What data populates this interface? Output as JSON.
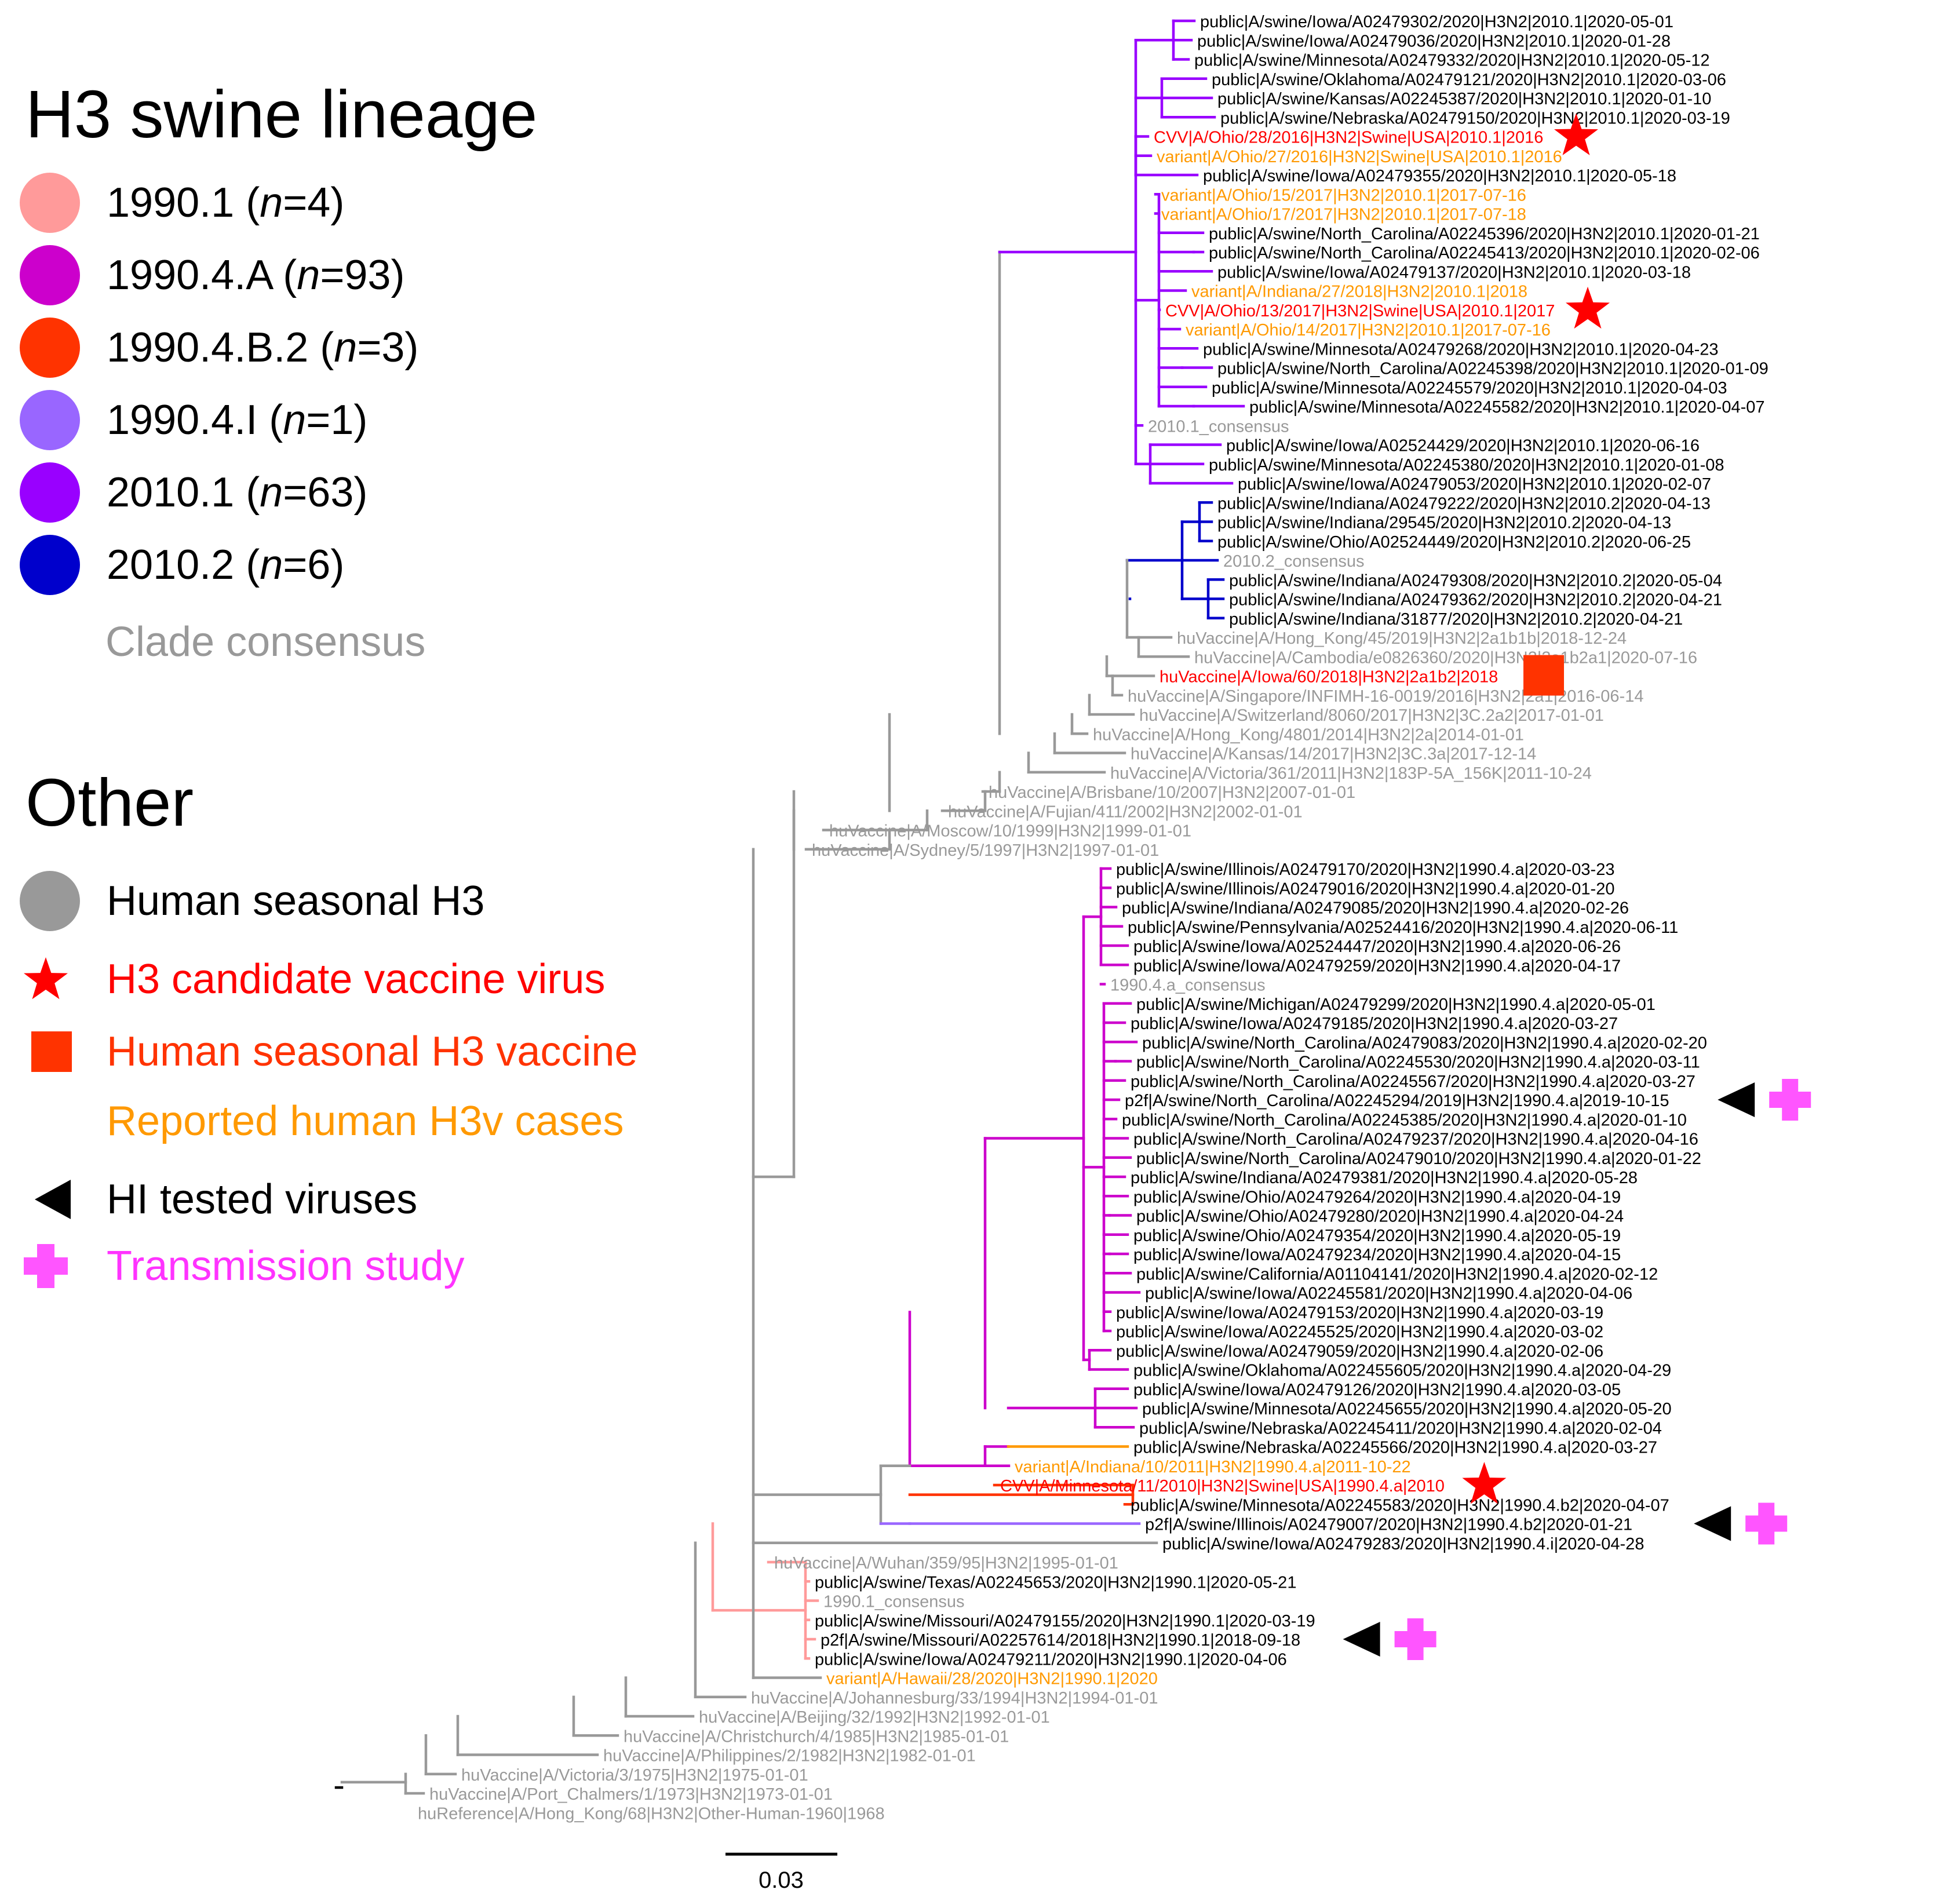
{
  "legend": {
    "lineage_title": "H3 swine lineage",
    "lineages": [
      {
        "name": "1990.1",
        "n": "4",
        "color": "#ff9a9a"
      },
      {
        "name": "1990.4.A",
        "n": "93",
        "color": "#cc00cc"
      },
      {
        "name": "1990.4.B.2",
        "n": "3",
        "color": "#ff3300"
      },
      {
        "name": "1990.4.I",
        "n": "1",
        "color": "#9966ff"
      },
      {
        "name": "2010.1",
        "n": "63",
        "color": "#9900ff"
      },
      {
        "name": "2010.2",
        "n": "6",
        "color": "#0000cc"
      }
    ],
    "consensus_label": "Clade consensus",
    "other_title": "Other",
    "other": [
      {
        "symbol": "circle",
        "label": "Human seasonal H3",
        "color": "#999999",
        "text_color": "#000000"
      },
      {
        "symbol": "star",
        "label": "H3 candidate vaccine virus",
        "color": "#ff0000",
        "text_color": "#ff0000"
      },
      {
        "symbol": "square",
        "label": "Human seasonal H3 vaccine",
        "color": "#ff3300",
        "text_color": "#ff3300"
      },
      {
        "symbol": "none",
        "label": "Reported human H3v cases",
        "color": "#ff9900",
        "text_color": "#ff9900"
      },
      {
        "symbol": "triangle",
        "label": "HI tested viruses",
        "color": "#000000",
        "text_color": "#000000"
      },
      {
        "symbol": "cross",
        "label": "Transmission study",
        "color": "#ff55ff",
        "text_color": "#ff33ff"
      }
    ]
  },
  "colors": {
    "2010.1": "#9900ff",
    "2010.2": "#0000cc",
    "1990.4.A": "#cc00cc",
    "1990.4.B.2": "#ff3300",
    "1990.4.I": "#9966ff",
    "1990.1": "#ff9a9a",
    "human": "#999999",
    "cvv": "#ff0000",
    "variant": "#ff9900",
    "swine_text": "#000000",
    "consensus_text": "#999999"
  },
  "scale_bar": {
    "value": 0.03,
    "label": "0.03"
  },
  "taxa": [
    {
      "label": "public|A/swine/Iowa/A02479302/2020|H3N2|2010.1|2020-05-01",
      "type": "swine",
      "clade": "2010.1"
    },
    {
      "label": "public|A/swine/Iowa/A02479036/2020|H3N2|2010.1|2020-01-28",
      "type": "swine",
      "clade": "2010.1"
    },
    {
      "label": "public|A/swine/Minnesota/A02479332/2020|H3N2|2010.1|2020-05-12",
      "type": "swine",
      "clade": "2010.1"
    },
    {
      "label": "public|A/swine/Oklahoma/A02479121/2020|H3N2|2010.1|2020-03-06",
      "type": "swine",
      "clade": "2010.1"
    },
    {
      "label": "public|A/swine/Kansas/A02245387/2020|H3N2|2010.1|2020-01-10",
      "type": "swine",
      "clade": "2010.1"
    },
    {
      "label": "public|A/swine/Nebraska/A02479150/2020|H3N2|2010.1|2020-03-19",
      "type": "swine",
      "clade": "2010.1"
    },
    {
      "label": "CVV|A/Ohio/28/2016|H3N2|Swine|USA|2010.1|2016",
      "type": "cvv",
      "clade": "2010.1",
      "star": true
    },
    {
      "label": "variant|A/Ohio/27/2016|H3N2|Swine|USA|2010.1|2016",
      "type": "variant",
      "clade": "2010.1"
    },
    {
      "label": "public|A/swine/Iowa/A02479355/2020|H3N2|2010.1|2020-05-18",
      "type": "swine",
      "clade": "2010.1"
    },
    {
      "label": "variant|A/Ohio/15/2017|H3N2|2010.1|2017-07-16",
      "type": "variant",
      "clade": "2010.1"
    },
    {
      "label": "variant|A/Ohio/17/2017|H3N2|2010.1|2017-07-18",
      "type": "variant",
      "clade": "2010.1"
    },
    {
      "label": "public|A/swine/North_Carolina/A02245396/2020|H3N2|2010.1|2020-01-21",
      "type": "swine",
      "clade": "2010.1"
    },
    {
      "label": "public|A/swine/North_Carolina/A02245413/2020|H3N2|2010.1|2020-02-06",
      "type": "swine",
      "clade": "2010.1"
    },
    {
      "label": "public|A/swine/Iowa/A02479137/2020|H3N2|2010.1|2020-03-18",
      "type": "swine",
      "clade": "2010.1"
    },
    {
      "label": "variant|A/Indiana/27/2018|H3N2|2010.1|2018",
      "type": "variant",
      "clade": "2010.1"
    },
    {
      "label": "CVV|A/Ohio/13/2017|H3N2|Swine|USA|2010.1|2017",
      "type": "cvv",
      "clade": "2010.1",
      "star": true
    },
    {
      "label": "variant|A/Ohio/14/2017|H3N2|2010.1|2017-07-16",
      "type": "variant",
      "clade": "2010.1"
    },
    {
      "label": "public|A/swine/Minnesota/A02479268/2020|H3N2|2010.1|2020-04-23",
      "type": "swine",
      "clade": "2010.1"
    },
    {
      "label": "public|A/swine/North_Carolina/A02245398/2020|H3N2|2010.1|2020-01-09",
      "type": "swine",
      "clade": "2010.1"
    },
    {
      "label": "public|A/swine/Minnesota/A02245579/2020|H3N2|2010.1|2020-04-03",
      "type": "swine",
      "clade": "2010.1"
    },
    {
      "label": "public|A/swine/Minnesota/A02245582/2020|H3N2|2010.1|2020-04-07",
      "type": "swine",
      "clade": "2010.1"
    },
    {
      "label": "2010.1_consensus",
      "type": "consensus",
      "clade": "2010.1"
    },
    {
      "label": "public|A/swine/Iowa/A02524429/2020|H3N2|2010.1|2020-06-16",
      "type": "swine",
      "clade": "2010.1"
    },
    {
      "label": "public|A/swine/Minnesota/A02245380/2020|H3N2|2010.1|2020-01-08",
      "type": "swine",
      "clade": "2010.1"
    },
    {
      "label": "public|A/swine/Iowa/A02479053/2020|H3N2|2010.1|2020-02-07",
      "type": "swine",
      "clade": "2010.1"
    },
    {
      "label": "public|A/swine/Indiana/A02479222/2020|H3N2|2010.2|2020-04-13",
      "type": "swine",
      "clade": "2010.2"
    },
    {
      "label": "public|A/swine/Indiana/29545/2020|H3N2|2010.2|2020-04-13",
      "type": "swine",
      "clade": "2010.2"
    },
    {
      "label": "public|A/swine/Ohio/A02524449/2020|H3N2|2010.2|2020-06-25",
      "type": "swine",
      "clade": "2010.2"
    },
    {
      "label": "2010.2_consensus",
      "type": "consensus",
      "clade": "2010.2"
    },
    {
      "label": "public|A/swine/Indiana/A02479308/2020|H3N2|2010.2|2020-05-04",
      "type": "swine",
      "clade": "2010.2"
    },
    {
      "label": "public|A/swine/Indiana/A02479362/2020|H3N2|2010.2|2020-04-21",
      "type": "swine",
      "clade": "2010.2"
    },
    {
      "label": "public|A/swine/Indiana/31877/2020|H3N2|2010.2|2020-04-21",
      "type": "swine",
      "clade": "2010.2"
    },
    {
      "label": "huVaccine|A/Hong_Kong/45/2019|H3N2|2a1b1b|2018-12-24",
      "type": "human",
      "clade": "human"
    },
    {
      "label": "huVaccine|A/Cambodia/e0826360/2020|H3N2|2a1b2a1|2020-07-16",
      "type": "human",
      "clade": "human"
    },
    {
      "label": "huVaccine|A/Iowa/60/2018|H3N2|2a1b2|2018",
      "type": "cvv",
      "clade": "human",
      "square": true
    },
    {
      "label": "huVaccine|A/Singapore/INFIMH-16-0019/2016|H3N2|2a1|2016-06-14",
      "type": "human",
      "clade": "human"
    },
    {
      "label": "huVaccine|A/Switzerland/8060/2017|H3N2|3C.2a2|2017-01-01",
      "type": "human",
      "clade": "human"
    },
    {
      "label": "huVaccine|A/Hong_Kong/4801/2014|H3N2|2a|2014-01-01",
      "type": "human",
      "clade": "human"
    },
    {
      "label": "huVaccine|A/Kansas/14/2017|H3N2|3C.3a|2017-12-14",
      "type": "human",
      "clade": "human"
    },
    {
      "label": "huVaccine|A/Victoria/361/2011|H3N2|183P-5A_156K|2011-10-24",
      "type": "human",
      "clade": "human"
    },
    {
      "label": "huVaccine|A/Brisbane/10/2007|H3N2|2007-01-01",
      "type": "human",
      "clade": "human"
    },
    {
      "label": "huVaccine|A/Fujian/411/2002|H3N2|2002-01-01",
      "type": "human",
      "clade": "human"
    },
    {
      "label": "huVaccine|A/Moscow/10/1999|H3N2|1999-01-01",
      "type": "human",
      "clade": "human"
    },
    {
      "label": "huVaccine|A/Sydney/5/1997|H3N2|1997-01-01",
      "type": "human",
      "clade": "human"
    },
    {
      "label": "public|A/swine/Illinois/A02479170/2020|H3N2|1990.4.a|2020-03-23",
      "type": "swine",
      "clade": "1990.4.A"
    },
    {
      "label": "public|A/swine/Illinois/A02479016/2020|H3N2|1990.4.a|2020-01-20",
      "type": "swine",
      "clade": "1990.4.A"
    },
    {
      "label": "public|A/swine/Indiana/A02479085/2020|H3N2|1990.4.a|2020-02-26",
      "type": "swine",
      "clade": "1990.4.A"
    },
    {
      "label": "public|A/swine/Pennsylvania/A02524416/2020|H3N2|1990.4.a|2020-06-11",
      "type": "swine",
      "clade": "1990.4.A"
    },
    {
      "label": "public|A/swine/Iowa/A02524447/2020|H3N2|1990.4.a|2020-06-26",
      "type": "swine",
      "clade": "1990.4.A"
    },
    {
      "label": "public|A/swine/Iowa/A02479259/2020|H3N2|1990.4.a|2020-04-17",
      "type": "swine",
      "clade": "1990.4.A"
    },
    {
      "label": "1990.4.a_consensus",
      "type": "consensus",
      "clade": "1990.4.A"
    },
    {
      "label": "public|A/swine/Michigan/A02479299/2020|H3N2|1990.4.a|2020-05-01",
      "type": "swine",
      "clade": "1990.4.A"
    },
    {
      "label": "public|A/swine/Iowa/A02479185/2020|H3N2|1990.4.a|2020-03-27",
      "type": "swine",
      "clade": "1990.4.A"
    },
    {
      "label": "public|A/swine/North_Carolina/A02479083/2020|H3N2|1990.4.a|2020-02-20",
      "type": "swine",
      "clade": "1990.4.A"
    },
    {
      "label": "public|A/swine/North_Carolina/A02245530/2020|H3N2|1990.4.a|2020-03-11",
      "type": "swine",
      "clade": "1990.4.A"
    },
    {
      "label": "public|A/swine/North_Carolina/A02245567/2020|H3N2|1990.4.a|2020-03-27",
      "type": "swine",
      "clade": "1990.4.A"
    },
    {
      "label": "p2f|A/swine/North_Carolina/A02245294/2019|H3N2|1990.4.a|2019-10-15",
      "type": "swine",
      "clade": "1990.4.A",
      "triangle": true,
      "cross": true
    },
    {
      "label": "public|A/swine/North_Carolina/A02245385/2020|H3N2|1990.4.a|2020-01-10",
      "type": "swine",
      "clade": "1990.4.A"
    },
    {
      "label": "public|A/swine/North_Carolina/A02479237/2020|H3N2|1990.4.a|2020-04-16",
      "type": "swine",
      "clade": "1990.4.A"
    },
    {
      "label": "public|A/swine/North_Carolina/A02479010/2020|H3N2|1990.4.a|2020-01-22",
      "type": "swine",
      "clade": "1990.4.A"
    },
    {
      "label": "public|A/swine/Indiana/A02479381/2020|H3N2|1990.4.a|2020-05-28",
      "type": "swine",
      "clade": "1990.4.A"
    },
    {
      "label": "public|A/swine/Ohio/A02479264/2020|H3N2|1990.4.a|2020-04-19",
      "type": "swine",
      "clade": "1990.4.A"
    },
    {
      "label": "public|A/swine/Ohio/A02479280/2020|H3N2|1990.4.a|2020-04-24",
      "type": "swine",
      "clade": "1990.4.A"
    },
    {
      "label": "public|A/swine/Ohio/A02479354/2020|H3N2|1990.4.a|2020-05-19",
      "type": "swine",
      "clade": "1990.4.A"
    },
    {
      "label": "public|A/swine/Iowa/A02479234/2020|H3N2|1990.4.a|2020-04-15",
      "type": "swine",
      "clade": "1990.4.A"
    },
    {
      "label": "public|A/swine/California/A01104141/2020|H3N2|1990.4.a|2020-02-12",
      "type": "swine",
      "clade": "1990.4.A"
    },
    {
      "label": "public|A/swine/Iowa/A02245581/2020|H3N2|1990.4.a|2020-04-06",
      "type": "swine",
      "clade": "1990.4.A"
    },
    {
      "label": "public|A/swine/Iowa/A02479153/2020|H3N2|1990.4.a|2020-03-19",
      "type": "swine",
      "clade": "1990.4.A"
    },
    {
      "label": "public|A/swine/Iowa/A02245525/2020|H3N2|1990.4.a|2020-03-02",
      "type": "swine",
      "clade": "1990.4.A"
    },
    {
      "label": "public|A/swine/Iowa/A02479059/2020|H3N2|1990.4.a|2020-02-06",
      "type": "swine",
      "clade": "1990.4.A"
    },
    {
      "label": "public|A/swine/Oklahoma/A022455605/2020|H3N2|1990.4.a|2020-04-29",
      "type": "swine",
      "clade": "1990.4.A"
    },
    {
      "label": "public|A/swine/Iowa/A02479126/2020|H3N2|1990.4.a|2020-03-05",
      "type": "swine",
      "clade": "1990.4.A"
    },
    {
      "label": "public|A/swine/Minnesota/A02245655/2020|H3N2|1990.4.a|2020-05-20",
      "type": "swine",
      "clade": "1990.4.A"
    },
    {
      "label": "public|A/swine/Nebraska/A02245411/2020|H3N2|1990.4.a|2020-02-04",
      "type": "swine",
      "clade": "1990.4.A"
    },
    {
      "label": "public|A/swine/Nebraska/A02245566/2020|H3N2|1990.4.a|2020-03-27",
      "type": "swine",
      "clade": "1990.4.A"
    },
    {
      "label": "variant|A/Indiana/10/2011|H3N2|1990.4.a|2011-10-22",
      "type": "variant",
      "clade": "1990.4.A"
    },
    {
      "label": "CVV|A/Minnesota/11/2010|H3N2|Swine|USA|1990.4.a|2010",
      "type": "cvv",
      "clade": "1990.4.A",
      "star": true
    },
    {
      "label": "public|A/swine/Minnesota/A02245583/2020|H3N2|1990.4.b2|2020-04-07",
      "type": "swine",
      "clade": "1990.4.B.2"
    },
    {
      "label": "p2f|A/swine/Illinois/A02479007/2020|H3N2|1990.4.b2|2020-01-21",
      "type": "swine",
      "clade": "1990.4.B.2",
      "triangle": true,
      "cross": true
    },
    {
      "label": "public|A/swine/Iowa/A02479283/2020|H3N2|1990.4.i|2020-04-28",
      "type": "swine",
      "clade": "1990.4.I"
    },
    {
      "label": "huVaccine|A/Wuhan/359/95|H3N2|1995-01-01",
      "type": "human",
      "clade": "human"
    },
    {
      "label": "public|A/swine/Texas/A02245653/2020|H3N2|1990.1|2020-05-21",
      "type": "swine",
      "clade": "1990.1"
    },
    {
      "label": "1990.1_consensus",
      "type": "consensus",
      "clade": "1990.1"
    },
    {
      "label": "public|A/swine/Missouri/A02479155/2020|H3N2|1990.1|2020-03-19",
      "type": "swine",
      "clade": "1990.1"
    },
    {
      "label": "p2f|A/swine/Missouri/A02257614/2018|H3N2|1990.1|2018-09-18",
      "type": "swine",
      "clade": "1990.1",
      "triangle": true,
      "cross": true
    },
    {
      "label": "public|A/swine/Iowa/A02479211/2020|H3N2|1990.1|2020-04-06",
      "type": "swine",
      "clade": "1990.1"
    },
    {
      "label": "variant|A/Hawaii/28/2020|H3N2|1990.1|2020",
      "type": "variant",
      "clade": "1990.1"
    },
    {
      "label": "huVaccine|A/Johannesburg/33/1994|H3N2|1994-01-01",
      "type": "human",
      "clade": "human"
    },
    {
      "label": "huVaccine|A/Beijing/32/1992|H3N2|1992-01-01",
      "type": "human",
      "clade": "human"
    },
    {
      "label": "huVaccine|A/Christchurch/4/1985|H3N2|1985-01-01",
      "type": "human",
      "clade": "human"
    },
    {
      "label": "huVaccine|A/Philippines/2/1982|H3N2|1982-01-01",
      "type": "human",
      "clade": "human"
    },
    {
      "label": "huVaccine|A/Victoria/3/1975|H3N2|1975-01-01",
      "type": "human",
      "clade": "human"
    },
    {
      "label": "huVaccine|A/Port_Chalmers/1/1973|H3N2|1973-01-01",
      "type": "human",
      "clade": "human"
    },
    {
      "label": "huReference|A/Hong_Kong/68|H3N2|Other-Human-1960|1968",
      "type": "human",
      "clade": "human"
    }
  ]
}
